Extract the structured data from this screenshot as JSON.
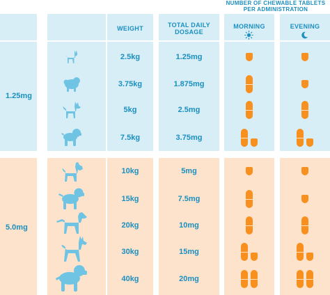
{
  "header": {
    "tablets_note": "NUMBER OF CHEWABLE TABLETS PER ADMINISTRATION",
    "weight": "WEIGHT",
    "total_daily_dosage": "TOTAL DAILY DOSAGE",
    "morning": "MORNING",
    "evening": "EVENING",
    "morning_icon": "sun-icon",
    "evening_icon": "moon-icon"
  },
  "colors": {
    "text": "#1a8fc0",
    "blue_panel": "#d8eef6",
    "peach_panel": "#fde3cc",
    "tablet": "#f7901e",
    "dog": "#6fc4e4"
  },
  "groups": [
    {
      "strength": "1.25mg",
      "rows": [
        {
          "weight": "2.5kg",
          "dosage": "1.25mg",
          "morning": 0.5,
          "evening": 0.5
        },
        {
          "weight": "3.75kg",
          "dosage": "1.875mg",
          "morning": 1,
          "evening": 0.5
        },
        {
          "weight": "5kg",
          "dosage": "2.5mg",
          "morning": 1,
          "evening": 1
        },
        {
          "weight": "7.5kg",
          "dosage": "3.75mg",
          "morning": 1.5,
          "evening": 1.5
        }
      ]
    },
    {
      "strength": "5.0mg",
      "rows": [
        {
          "weight": "10kg",
          "dosage": "5mg",
          "morning": 0.5,
          "evening": 0.5
        },
        {
          "weight": "15kg",
          "dosage": "7.5mg",
          "morning": 1,
          "evening": 0.5
        },
        {
          "weight": "20kg",
          "dosage": "10mg",
          "morning": 1,
          "evening": 1
        },
        {
          "weight": "30kg",
          "dosage": "15mg",
          "morning": 1.5,
          "evening": 1.5
        },
        {
          "weight": "40kg",
          "dosage": "20mg",
          "morning": 2,
          "evening": 2
        }
      ]
    }
  ]
}
